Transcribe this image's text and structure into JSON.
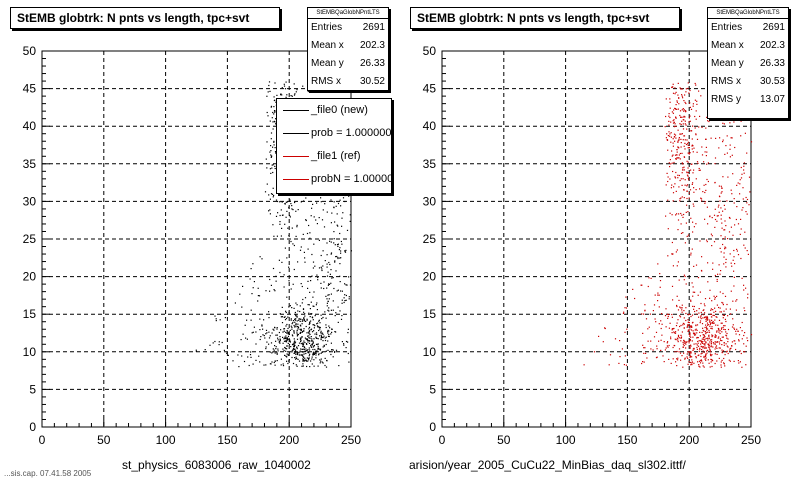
{
  "chart_data": [
    {
      "type": "scatter",
      "title": "StEMB globtrk: N pnts vs length, tpc+svt",
      "xlabel": "st_physics_6083006_raw_1040002",
      "ylabel": "",
      "xlim": [
        0,
        250
      ],
      "ylim": [
        0,
        50
      ],
      "xticks": [
        0,
        50,
        100,
        150,
        200,
        250
      ],
      "yticks": [
        0,
        5,
        10,
        15,
        20,
        25,
        30,
        35,
        40,
        45,
        50
      ],
      "grid": true,
      "stats": {
        "name": "StEMBQaGlobNPntLTS",
        "rows": [
          {
            "label": "Entries",
            "value": "2691"
          },
          {
            "label": "Mean x",
            "value": "202.3"
          },
          {
            "label": "Mean y",
            "value": "26.33"
          },
          {
            "label": "RMS x",
            "value": "30.52"
          }
        ]
      },
      "legend": [
        {
          "label": "_file0 (new)",
          "color": "#000000"
        },
        {
          "label": "prob = 1.000000",
          "color": "#000000"
        },
        {
          "label": "_file1 (ref)",
          "color": "#cc0000"
        },
        {
          "label": "probN = 1.000000",
          "color": "#cc0000"
        }
      ],
      "series": [
        {
          "color": "#000000",
          "entries": 2691
        }
      ]
    },
    {
      "type": "scatter",
      "title": "StEMB globtrk: N pnts vs length, tpc+svt",
      "xlabel": "arision/year_2005_CuCu22_MinBias_daq_sl302.ittf/",
      "ylabel": "",
      "xlim": [
        0,
        250
      ],
      "ylim": [
        0,
        50
      ],
      "xticks": [
        0,
        50,
        100,
        150,
        200,
        250
      ],
      "yticks": [
        0,
        5,
        10,
        15,
        20,
        25,
        30,
        35,
        40,
        45,
        50
      ],
      "grid": true,
      "stats": {
        "name": "StEMBQaGlobNPntLTS",
        "rows": [
          {
            "label": "Entries",
            "value": "2691"
          },
          {
            "label": "Mean x",
            "value": "202.3"
          },
          {
            "label": "Mean y",
            "value": "26.33"
          },
          {
            "label": "RMS x",
            "value": "30.53"
          },
          {
            "label": "RMS y",
            "value": "13.07"
          }
        ]
      },
      "series": [
        {
          "color": "#cc0000",
          "entries": 2691
        }
      ]
    }
  ],
  "footer": "...sis.cap. 07.41.58 2005"
}
